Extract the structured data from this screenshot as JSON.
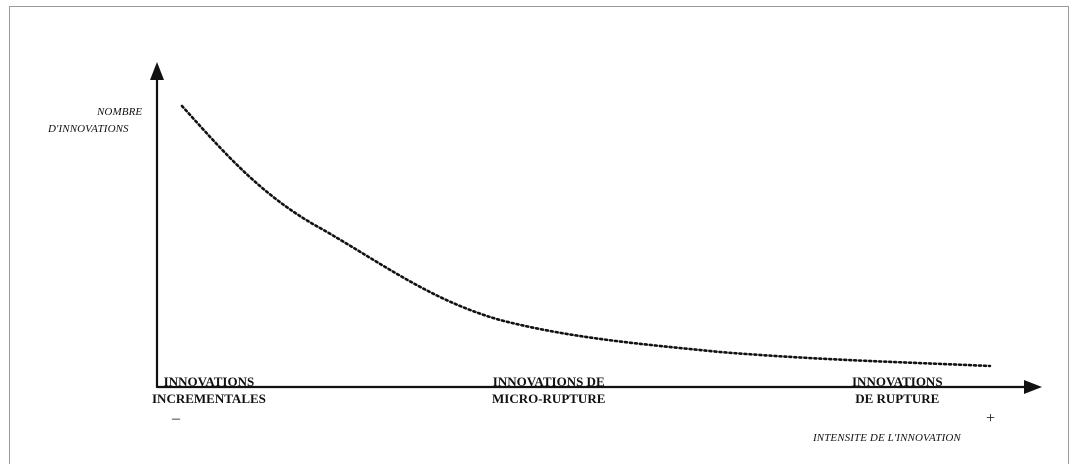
{
  "diagram": {
    "y_axis_label_line1": "NOMBRE",
    "y_axis_label_line2": "D'INNOVATIONS",
    "x_axis_label": "INTENSITE DE L'INNOVATION",
    "minus_sign": "–",
    "plus_sign": "+",
    "categories": [
      {
        "line1": "INNOVATIONS",
        "line2": "INCREMENTALES"
      },
      {
        "line1": "INNOVATIONS DE",
        "line2": "MICRO-RUPTURE"
      },
      {
        "line1": "INNOVATIONS",
        "line2": "DE RUPTURE"
      }
    ],
    "curve_style": "dotted",
    "colors": {
      "ink": "#111111",
      "frame": "#9a9a9a"
    }
  }
}
